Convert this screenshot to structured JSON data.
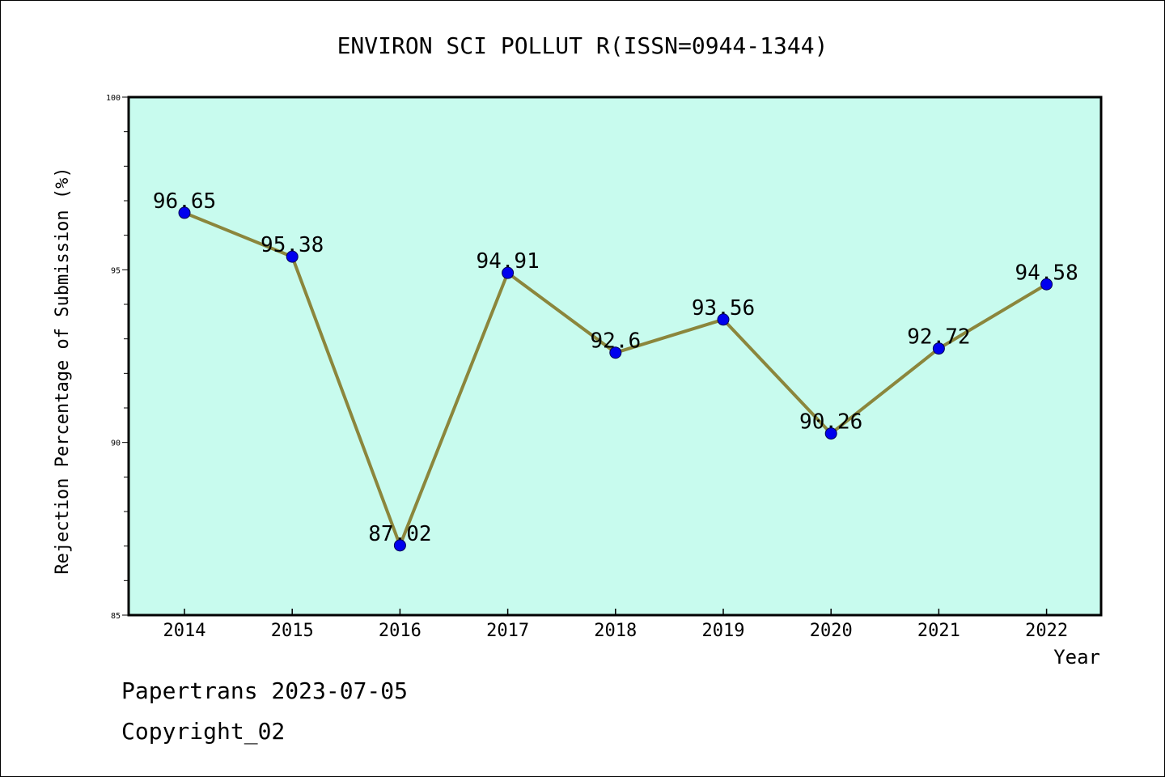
{
  "chart_data": {
    "type": "line",
    "title": "ENVIRON SCI POLLUT R(ISSN=0944-1344)",
    "xlabel": "Year",
    "ylabel": "Rejection Percentage of Submission (%)",
    "categories": [
      "2014",
      "2015",
      "2016",
      "2017",
      "2018",
      "2019",
      "2020",
      "2021",
      "2022"
    ],
    "values": [
      96.65,
      95.38,
      87.02,
      94.91,
      92.6,
      93.56,
      90.26,
      92.72,
      94.58
    ],
    "data_labels": [
      "96.65",
      "95.38",
      "87.02",
      "94.91",
      "92.6",
      "93.56",
      "90.26",
      "92.72",
      "94.58"
    ],
    "ylim": [
      85,
      100
    ],
    "yticks": [
      "85",
      "90",
      "95",
      "100"
    ],
    "grid": false,
    "colors": {
      "plot_bg": "#c8fbee",
      "line": "#8b863c",
      "marker": "#0000ee"
    }
  },
  "footer": {
    "line1": "Papertrans 2023-07-05",
    "line2": "Copyright_02"
  }
}
